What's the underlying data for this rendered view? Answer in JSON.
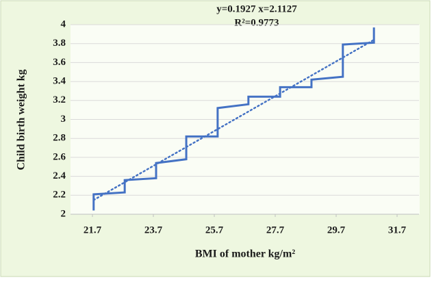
{
  "chart_data": {
    "type": "line",
    "annotations": [
      "y=0.1927 x=2.1127",
      "R²=0.9773"
    ],
    "xlabel": "BMI of mother kg/m²",
    "ylabel": "Child birth weight kg",
    "xlim": [
      21.7,
      31.7
    ],
    "xticks": [
      21.7,
      23.7,
      25.7,
      27.7,
      29.7,
      31.7
    ],
    "ylim": [
      2,
      4
    ],
    "yticks": [
      2,
      2.2,
      2.4,
      2.6,
      2.8,
      3,
      3.2,
      3.4,
      3.6,
      3.8,
      4
    ],
    "grid": true,
    "series": [
      {
        "color": "#4472c4",
        "x": [
          21.74,
          21.74,
          22.76,
          22.76,
          23.79,
          23.79,
          24.78,
          24.78,
          25.81,
          25.81,
          26.82,
          26.82,
          27.86,
          27.86,
          28.89,
          28.89,
          29.92,
          29.92,
          30.94,
          30.94
        ],
        "values": [
          2.04,
          2.21,
          2.23,
          2.36,
          2.38,
          2.54,
          2.58,
          2.82,
          2.82,
          3.12,
          3.16,
          3.24,
          3.24,
          3.34,
          3.34,
          3.42,
          3.45,
          3.79,
          3.81,
          3.97
        ]
      }
    ],
    "trendline": {
      "color": "#4472c4",
      "x": [
        21.74,
        30.94
      ],
      "values": [
        2.15,
        3.84
      ]
    }
  }
}
